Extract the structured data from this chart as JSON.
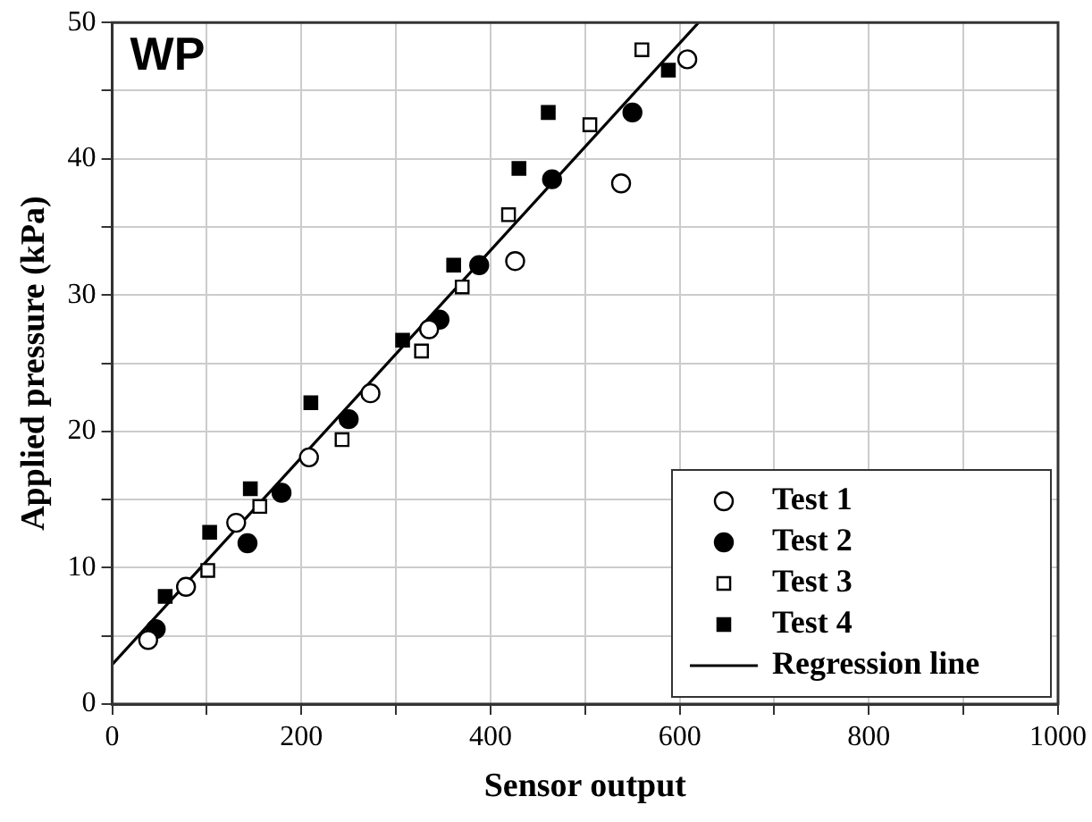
{
  "chart_data": {
    "type": "scatter",
    "title": "WP",
    "xlabel": "Sensor output",
    "ylabel": "Applied pressure (kPa)",
    "xlim": [
      0,
      1000
    ],
    "xticks": [
      0,
      {
        "value": 100,
        "label": null
      },
      200,
      {
        "value": 300,
        "label": null
      },
      400,
      {
        "value": 500,
        "label": null
      },
      600,
      {
        "value": 700,
        "label": null
      },
      800,
      {
        "value": 900,
        "label": null
      },
      1000
    ],
    "ylim": [
      0,
      50
    ],
    "yticks": [
      0,
      {
        "value": 5,
        "label": null
      },
      10,
      {
        "value": 15,
        "label": null
      },
      20,
      {
        "value": 25,
        "label": null
      },
      30,
      {
        "value": 35,
        "label": null
      },
      40,
      {
        "value": 45,
        "label": null
      },
      50
    ],
    "grid": true,
    "legend": "bottom right",
    "series": [
      {
        "name": "Test 1",
        "marker": "circle",
        "color": "#ffffff",
        "x": [
          38,
          78,
          131,
          208,
          273,
          335,
          426,
          538,
          608
        ],
        "values": [
          4.7,
          8.6,
          13.3,
          18.1,
          22.8,
          27.5,
          32.5,
          38.2,
          47.3
        ]
      },
      {
        "name": "Test 2",
        "marker": "circle",
        "color": "#000000",
        "x": [
          46,
          143,
          179,
          250,
          346,
          388,
          465,
          550
        ],
        "values": [
          5.5,
          11.8,
          15.5,
          20.9,
          28.2,
          32.2,
          38.5,
          43.4
        ]
      },
      {
        "name": "Test 3",
        "marker": "square",
        "color": "#ffffff",
        "x": [
          101,
          156,
          243,
          327,
          370,
          419,
          505,
          560
        ],
        "values": [
          9.8,
          14.5,
          19.4,
          25.9,
          30.6,
          35.9,
          42.5,
          48
        ]
      },
      {
        "name": "Test 4",
        "marker": "square",
        "color": "#000000",
        "x": [
          56,
          103,
          146,
          210,
          307,
          361,
          430,
          461,
          588
        ],
        "values": [
          7.9,
          12.6,
          15.8,
          22.1,
          26.7,
          32.2,
          39.3,
          43.4,
          46.5
        ]
      },
      {
        "name": "Regression line",
        "type": "line",
        "marker": "none",
        "line_style": "solid",
        "color": "#000000",
        "x": [
          0,
          620
        ],
        "values": [
          2.9,
          50
        ]
      }
    ]
  }
}
